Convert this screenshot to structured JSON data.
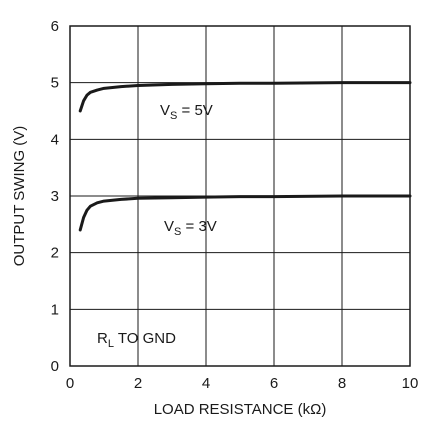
{
  "chart_data": {
    "type": "line",
    "xlabel": "LOAD RESISTANCE (kΩ)",
    "ylabel": "OUTPUT SWING (V)",
    "xlim": [
      0,
      10
    ],
    "ylim": [
      0,
      6
    ],
    "x_ticks": [
      "0",
      "2",
      "4",
      "6",
      "8",
      "10"
    ],
    "y_ticks": [
      "0",
      "1",
      "2",
      "3",
      "4",
      "5",
      "6"
    ],
    "grid": true,
    "legend": "none",
    "series": [
      {
        "x": [
          0.3,
          0.4,
          0.5,
          0.6,
          0.8,
          1,
          1.5,
          2,
          3,
          4,
          5,
          6,
          8,
          10
        ],
        "y": [
          4.5,
          4.68,
          4.78,
          4.83,
          4.87,
          4.9,
          4.93,
          4.95,
          4.97,
          4.98,
          4.99,
          4.99,
          5.0,
          5.0
        ]
      },
      {
        "x": [
          0.3,
          0.4,
          0.5,
          0.6,
          0.8,
          1,
          1.5,
          2,
          3,
          4,
          5,
          6,
          8,
          10
        ],
        "y": [
          2.4,
          2.62,
          2.75,
          2.82,
          2.88,
          2.91,
          2.94,
          2.96,
          2.97,
          2.98,
          2.99,
          2.99,
          3.0,
          3.0
        ]
      }
    ],
    "annotations": [
      {
        "main": "V",
        "sub": "S",
        "rest": " = 5V"
      },
      {
        "main": "V",
        "sub": "S",
        "rest": " = 3V"
      },
      {
        "main": "R",
        "sub": "L",
        "rest": " TO GND"
      }
    ],
    "colors": {
      "line": "#1a1a1a",
      "grid": "#1a1a1a"
    }
  }
}
